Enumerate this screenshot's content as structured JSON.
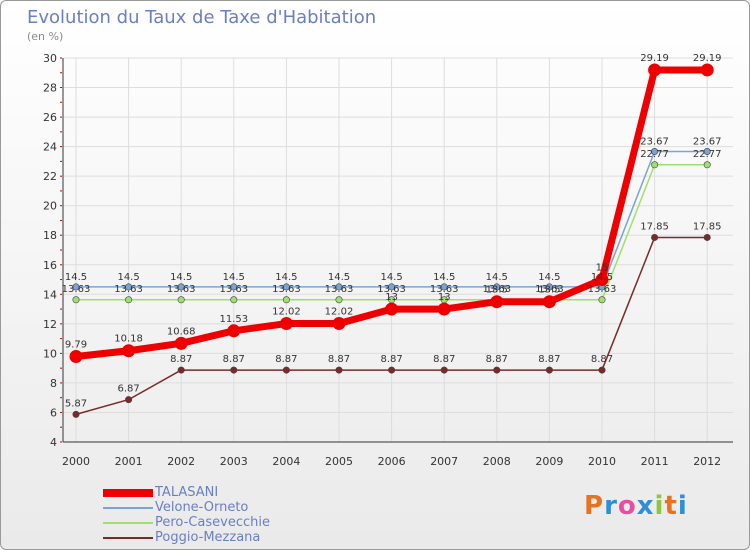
{
  "title": "Evolution du Taux de Taxe d'Habitation",
  "unit": "(en %)",
  "logo": {
    "text": "Proxiti",
    "colors": [
      "#e8731e",
      "#2f8fd6",
      "#e84ea0",
      "#2f8fd6",
      "#8dc63f",
      "#e8731e",
      "#2f8fd6"
    ]
  },
  "chart_data": {
    "type": "line",
    "title": "Evolution du Taux de Taxe d'Habitation",
    "ylabel": "(en %)",
    "xlabel": "",
    "x": [
      "2000",
      "2001",
      "2002",
      "2003",
      "2004",
      "2005",
      "2006",
      "2007",
      "2008",
      "2009",
      "2010",
      "2011",
      "2012"
    ],
    "ylim": [
      4,
      30
    ],
    "yticks": [
      4,
      6,
      8,
      10,
      12,
      14,
      16,
      18,
      20,
      22,
      24,
      26,
      28,
      30
    ],
    "grid": true,
    "series": [
      {
        "name": "TALASANI",
        "color": "#ee0000",
        "values": [
          9.79,
          10.18,
          10.68,
          11.53,
          12.02,
          12.02,
          13.0,
          13.0,
          13.5,
          13.5,
          15.0,
          29.19,
          29.19
        ],
        "labels": [
          "9.79",
          "10.18",
          "10.68",
          "11.53",
          "12.02",
          "12.02",
          "13",
          "13",
          "13.5",
          "13.5",
          "15",
          "29.19",
          "29.19"
        ]
      },
      {
        "name": "Velone-Orneto",
        "color": "#7ba3d6",
        "values": [
          14.5,
          14.5,
          14.5,
          14.5,
          14.5,
          14.5,
          14.5,
          14.5,
          14.5,
          14.5,
          14.5,
          23.67,
          23.67
        ],
        "labels": [
          "14.5",
          "14.5",
          "14.5",
          "14.5",
          "14.5",
          "14.5",
          "14.5",
          "14.5",
          "14.5",
          "14.5",
          "14.5",
          "23.67",
          "23.67"
        ]
      },
      {
        "name": "Pero-Casevecchie",
        "color": "#9ee06e",
        "values": [
          13.63,
          13.63,
          13.63,
          13.63,
          13.63,
          13.63,
          13.63,
          13.63,
          13.63,
          13.63,
          13.63,
          22.77,
          22.77
        ],
        "labels": [
          "13.63",
          "13.63",
          "13.63",
          "13.63",
          "13.63",
          "13.63",
          "13.63",
          "13.63",
          "13.63",
          "13.63",
          "13.63",
          "22.77",
          "22.77"
        ]
      },
      {
        "name": "Poggio-Mezzana",
        "color": "#7a2a2a",
        "values": [
          5.87,
          6.87,
          8.87,
          8.87,
          8.87,
          8.87,
          8.87,
          8.87,
          8.87,
          8.87,
          8.87,
          17.85,
          17.85
        ],
        "labels": [
          "5.87",
          "6.87",
          "8.87",
          "8.87",
          "8.87",
          "8.87",
          "8.87",
          "8.87",
          "8.87",
          "8.87",
          "8.87",
          "17.85",
          "17.85"
        ]
      }
    ]
  }
}
